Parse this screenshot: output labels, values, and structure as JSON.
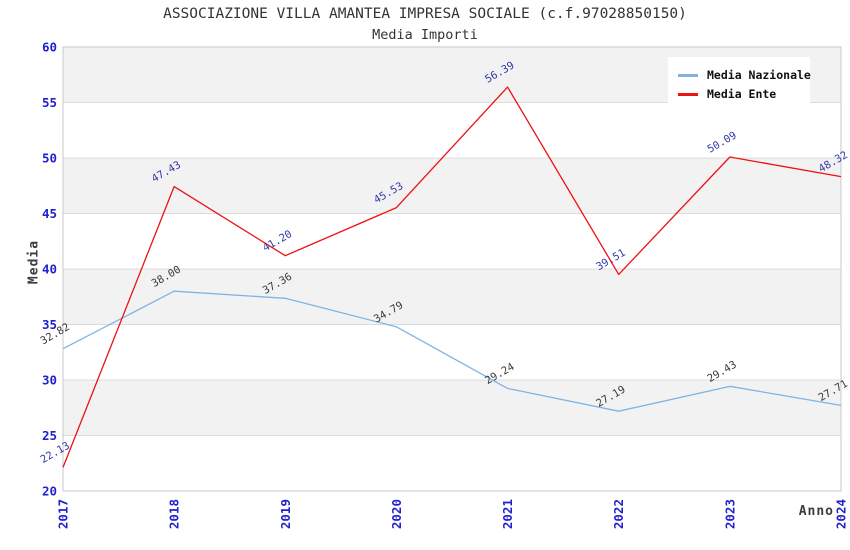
{
  "chart_data": {
    "type": "line",
    "title": "ASSOCIAZIONE VILLA AMANTEA IMPRESA SOCIALE (c.f.97028850150)",
    "subtitle": "Media Importi",
    "xlabel": "Anno",
    "ylabel": "Media",
    "categories": [
      "2017",
      "2018",
      "2019",
      "2020",
      "2021",
      "2022",
      "2023",
      "2024"
    ],
    "ylim": [
      20,
      60
    ],
    "ytick_step": 5,
    "grid": true,
    "banded_background": true,
    "legend_position": "top-right",
    "series": [
      {
        "name": "Media Nazionale",
        "color": "#7FB3E4",
        "label_color": "#3A3A3A",
        "values": [
          32.82,
          38.0,
          37.36,
          34.79,
          29.24,
          27.19,
          29.43,
          27.71
        ]
      },
      {
        "name": "Media Ente",
        "color": "#EE1111",
        "label_color": "#3238A8",
        "values": [
          22.13,
          47.43,
          41.2,
          45.53,
          56.39,
          39.51,
          50.09,
          48.32
        ]
      }
    ]
  },
  "colors": {
    "tick": "#2121CE",
    "band": "#F2F2F2",
    "grid": "#DCDCDC",
    "border": "#C9C9C9",
    "title": "#333333",
    "subtitle": "#333333",
    "axis_title": "#3C3C3C",
    "legend_text": "#111111",
    "background": "#FFFFFF"
  }
}
